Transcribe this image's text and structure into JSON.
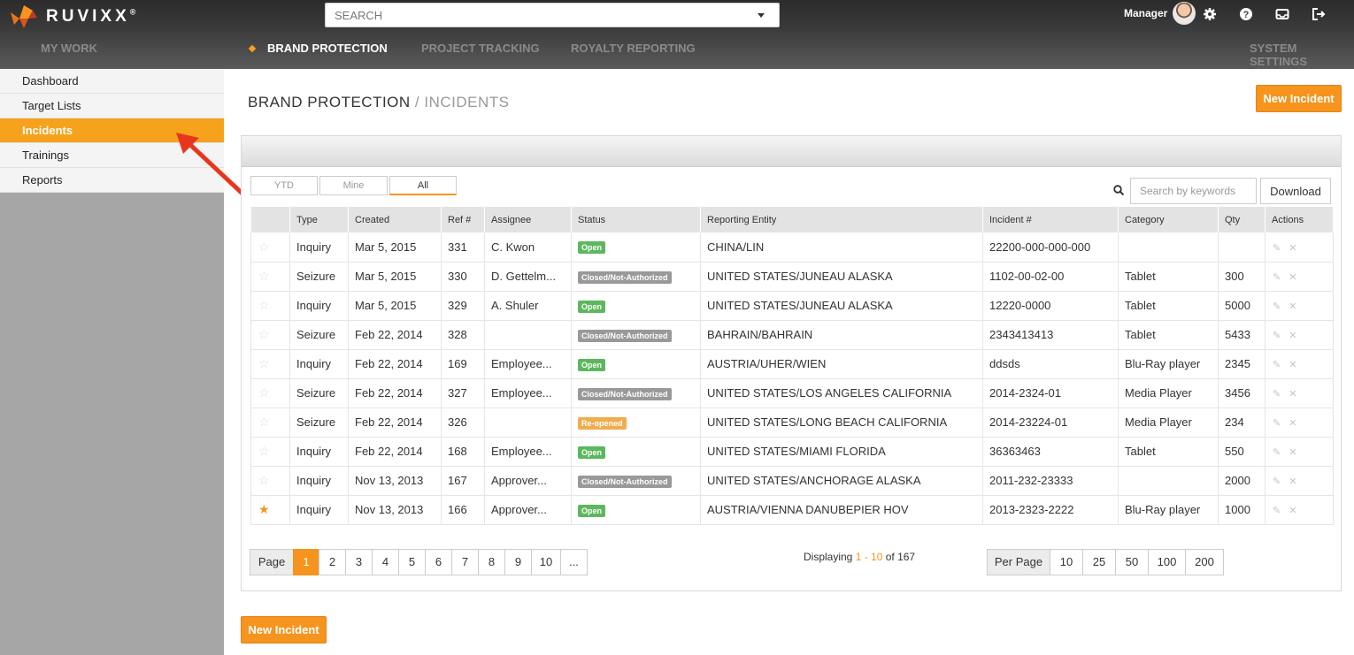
{
  "app": {
    "logo_text": "RUVIXX",
    "logo_reg": "®"
  },
  "search": {
    "placeholder": "SEARCH"
  },
  "user": {
    "name": "Manager"
  },
  "topnav": {
    "my_work": "MY WORK",
    "brand_protection": "BRAND PROTECTION",
    "project_tracking": "PROJECT TRACKING",
    "royalty_reporting": "ROYALTY REPORTING",
    "system_settings": "SYSTEM SETTINGS"
  },
  "sidebar": {
    "items": [
      {
        "label": "Dashboard"
      },
      {
        "label": "Target Lists"
      },
      {
        "label": "Incidents"
      },
      {
        "label": "Trainings"
      },
      {
        "label": "Reports"
      }
    ]
  },
  "page": {
    "title": "BRAND PROTECTION",
    "separator": " / ",
    "subtitle": "INCIDENTS",
    "new_incident": "New Incident"
  },
  "filters": {
    "ytd": "YTD",
    "mine": "Mine",
    "all": "All"
  },
  "keyword_search": {
    "placeholder": "Search by keywords"
  },
  "download": "Download",
  "table": {
    "headers": {
      "type": "Type",
      "created": "Created",
      "ref": "Ref #",
      "assignee": "Assignee",
      "status": "Status",
      "entity": "Reporting Entity",
      "incident": "Incident #",
      "category": "Category",
      "qty": "Qty",
      "actions": "Actions"
    },
    "rows": [
      {
        "type": "Inquiry",
        "created": "Mar 5, 2015",
        "ref": "331",
        "assignee": "C. Kwon",
        "status": "Open",
        "entity": "CHINA/LIN",
        "incident": "22200-000-000-000",
        "category": "",
        "qty": ""
      },
      {
        "type": "Seizure",
        "created": "Mar 5, 2015",
        "ref": "330",
        "assignee": "D. Gettelm...",
        "status": "Closed/Not-Authorized",
        "entity": "UNITED STATES/JUNEAU ALASKA",
        "incident": "1102-00-02-00",
        "category": "Tablet",
        "qty": "300"
      },
      {
        "type": "Inquiry",
        "created": "Mar 5, 2015",
        "ref": "329",
        "assignee": "A. Shuler",
        "status": "Open",
        "entity": "UNITED STATES/JUNEAU ALASKA",
        "incident": "12220-0000",
        "category": "Tablet",
        "qty": "5000"
      },
      {
        "type": "Seizure",
        "created": "Feb 22, 2014",
        "ref": "328",
        "assignee": "",
        "status": "Closed/Not-Authorized",
        "entity": "BAHRAIN/BAHRAIN",
        "incident": "2343413413",
        "category": "Tablet",
        "qty": "5433"
      },
      {
        "type": "Inquiry",
        "created": "Feb 22, 2014",
        "ref": "169",
        "assignee": "Employee...",
        "status": "Open",
        "entity": "AUSTRIA/UHER/WIEN",
        "incident": "ddsds",
        "category": "Blu-Ray player",
        "qty": "2345"
      },
      {
        "type": "Seizure",
        "created": "Feb 22, 2014",
        "ref": "327",
        "assignee": "Employee...",
        "status": "Closed/Not-Authorized",
        "entity": "UNITED STATES/LOS ANGELES CALIFORNIA",
        "incident": "2014-2324-01",
        "category": "Media Player",
        "qty": "3456"
      },
      {
        "type": "Seizure",
        "created": "Feb 22, 2014",
        "ref": "326",
        "assignee": "",
        "status": "Re-opened",
        "entity": "UNITED STATES/LONG BEACH CALIFORNIA",
        "incident": "2014-23224-01",
        "category": "Media Player",
        "qty": "234"
      },
      {
        "type": "Inquiry",
        "created": "Feb 22, 2014",
        "ref": "168",
        "assignee": "Employee...",
        "status": "Open",
        "entity": "UNITED STATES/MIAMI FLORIDA",
        "incident": "36363463",
        "category": "Tablet",
        "qty": "550"
      },
      {
        "type": "Inquiry",
        "created": "Nov 13, 2013",
        "ref": "167",
        "assignee": "Approver...",
        "status": "Closed/Not-Authorized",
        "entity": "UNITED STATES/ANCHORAGE ALASKA",
        "incident": "2011-232-23333",
        "category": "",
        "qty": "2000"
      },
      {
        "type": "Inquiry",
        "created": "Nov 13, 2013",
        "ref": "166",
        "assignee": "Approver...",
        "status": "Open",
        "entity": "AUSTRIA/VIENNA DANUBEPIER HOV",
        "incident": "2013-2323-2222",
        "category": "Blu-Ray player",
        "qty": "1000"
      }
    ]
  },
  "pagination": {
    "label": "Page",
    "pages": [
      "1",
      "2",
      "3",
      "4",
      "5",
      "6",
      "7",
      "8",
      "9",
      "10",
      "..."
    ],
    "display_prefix": "Displaying ",
    "display_range": "1 - 10",
    "display_suffix": " of 167"
  },
  "per_page": {
    "label": "Per Page",
    "options": [
      "10",
      "25",
      "50",
      "100",
      "200"
    ]
  },
  "colors": {
    "accent": "#f7941d",
    "open": "#5cb85c",
    "closed": "#999999",
    "reopened": "#f0ad4e"
  },
  "icons": {
    "search_caret": "chevron-down-icon",
    "settings": "gear-icon",
    "help": "help-icon",
    "inbox": "inbox-icon",
    "logout": "logout-icon",
    "star": "star-icon",
    "edit": "pencil-icon",
    "delete": "close-icon"
  }
}
